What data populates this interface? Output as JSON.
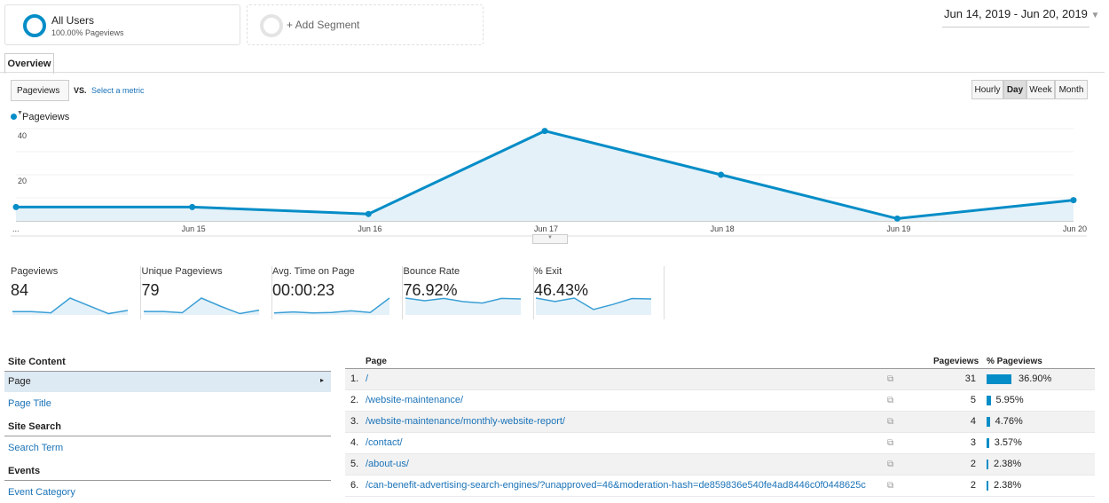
{
  "segments": {
    "all_users": "All Users",
    "all_users_sub": "100.00% Pageviews",
    "add": "+ Add Segment"
  },
  "date_range": "Jun 14, 2019 - Jun 20, 2019",
  "tab": "Overview",
  "metric_select": "Pageviews",
  "vs": "VS.",
  "select_metric": "Select a metric",
  "granularity": [
    "Hourly",
    "Day",
    "Week",
    "Month"
  ],
  "granularity_selected": "Day",
  "chart_data": {
    "type": "area",
    "series": [
      {
        "name": "Pageviews",
        "values": [
          6,
          6,
          3,
          39,
          20,
          1,
          9
        ]
      }
    ],
    "x": [
      "Jun 14",
      "Jun 15",
      "Jun 16",
      "Jun 17",
      "Jun 18",
      "Jun 19",
      "Jun 20"
    ],
    "xtick_labels": [
      "...",
      "Jun 15",
      "Jun 16",
      "Jun 17",
      "Jun 18",
      "Jun 19",
      "Jun 20"
    ],
    "yticks": [
      "20",
      "40"
    ],
    "ylim": [
      0,
      40
    ],
    "color": "#058dc7",
    "legend": "top-left",
    "grid": true
  },
  "scorecards": [
    {
      "label": "Pageviews",
      "value": "84",
      "spark": [
        6,
        6,
        3,
        39,
        20,
        1,
        9
      ]
    },
    {
      "label": "Unique Pageviews",
      "value": "79",
      "spark": [
        6,
        6,
        3,
        37,
        18,
        1,
        9
      ]
    },
    {
      "label": "Avg. Time on Page",
      "value": "00:00:23",
      "spark": [
        2,
        4,
        2,
        3,
        6,
        3,
        30
      ]
    },
    {
      "label": "Bounce Rate",
      "value": "76.92%",
      "spark": [
        90,
        75,
        88,
        70,
        62,
        88,
        85
      ]
    },
    {
      "label": "% Exit",
      "value": "46.43%",
      "spark": [
        70,
        55,
        70,
        20,
        42,
        68,
        66
      ]
    }
  ],
  "left": {
    "site_content": "Site Content",
    "page": "Page",
    "page_title": "Page Title",
    "site_search": "Site Search",
    "search_term": "Search Term",
    "events": "Events",
    "event_category": "Event Category"
  },
  "table": {
    "headers": {
      "page": "Page",
      "pageviews": "Pageviews",
      "pct": "% Pageviews"
    },
    "rows": [
      {
        "n": "1.",
        "page": "/",
        "pv": "31",
        "pct": "36.90%",
        "frac": 0.369
      },
      {
        "n": "2.",
        "page": "/website-maintenance/",
        "pv": "5",
        "pct": "5.95%",
        "frac": 0.0595
      },
      {
        "n": "3.",
        "page": "/website-maintenance/monthly-website-report/",
        "pv": "4",
        "pct": "4.76%",
        "frac": 0.0476
      },
      {
        "n": "4.",
        "page": "/contact/",
        "pv": "3",
        "pct": "3.57%",
        "frac": 0.0357
      },
      {
        "n": "5.",
        "page": "/about-us/",
        "pv": "2",
        "pct": "2.38%",
        "frac": 0.0238
      },
      {
        "n": "6.",
        "page": "/can-benefit-advertising-search-engines/?unapproved=46&moderation-hash=de859836e540fe4ad8446c0f0448625c",
        "pv": "2",
        "pct": "2.38%",
        "frac": 0.0238
      }
    ]
  }
}
